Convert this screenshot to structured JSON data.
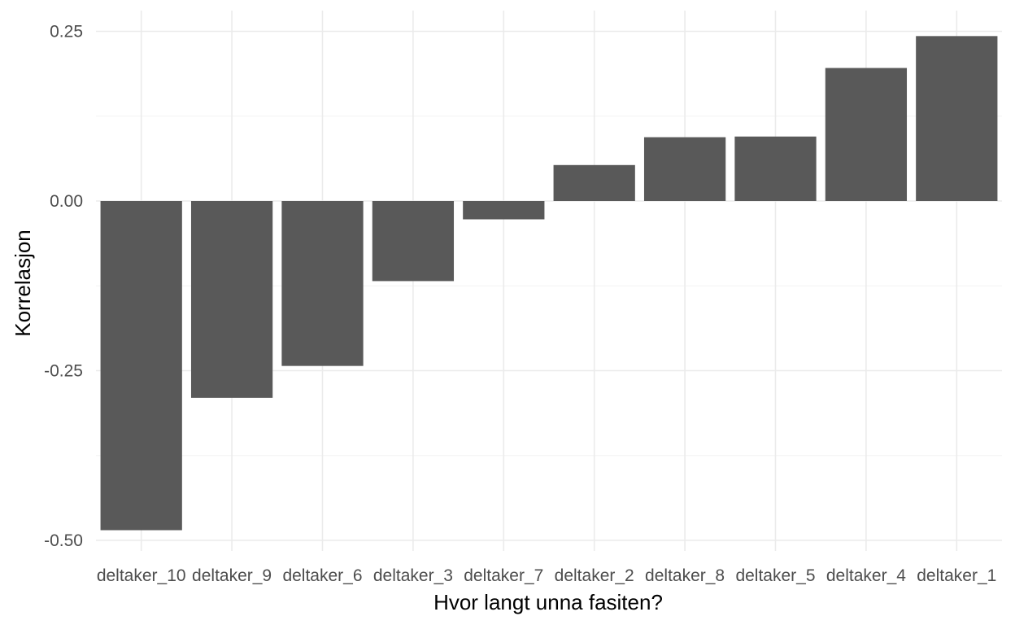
{
  "chart_data": {
    "type": "bar",
    "title": "",
    "xlabel": "Hvor langt unna fasiten?",
    "ylabel": "Korrelasjon",
    "categories": [
      "deltaker_10",
      "deltaker_9",
      "deltaker_6",
      "deltaker_3",
      "deltaker_7",
      "deltaker_2",
      "deltaker_8",
      "deltaker_5",
      "deltaker_4",
      "deltaker_1"
    ],
    "values": [
      -0.485,
      -0.29,
      -0.243,
      -0.118,
      -0.027,
      0.053,
      0.094,
      0.095,
      0.196,
      0.243
    ],
    "ylim": [
      -0.5,
      0.25
    ],
    "yticks": [
      -0.5,
      -0.25,
      0.0,
      0.25
    ],
    "ytick_labels": [
      "-0.50",
      "-0.25",
      "0.00",
      "0.25"
    ],
    "grid": true,
    "bar_color": "#595959"
  }
}
